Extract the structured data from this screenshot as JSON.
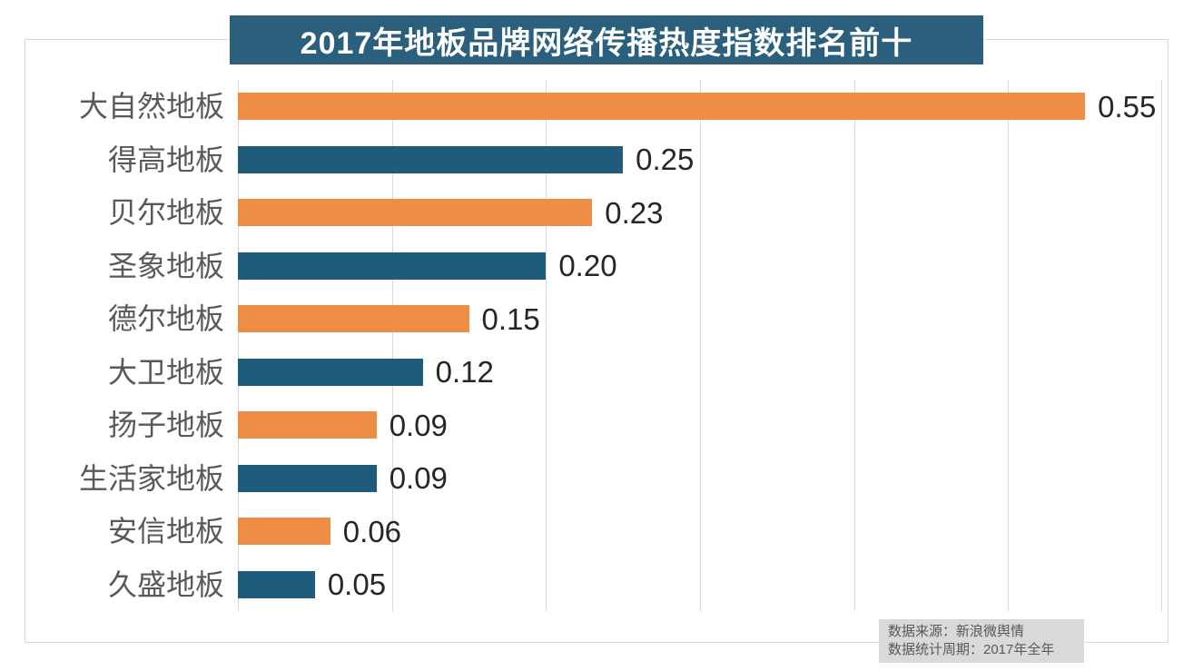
{
  "title": "2017年地板品牌网络传播热度指数排名前十",
  "source_note": {
    "line1": "数据来源：新浪微舆情",
    "line2": "数据统计周期：2017年全年"
  },
  "colors": {
    "orange_bar": "#EE8D45",
    "blue_bar": "#1F5B7B",
    "title_bg": "#2A5F7D",
    "title_text": "#FFFFFF",
    "grid": "#D9D9D9",
    "frame_border": "#D9D9D9",
    "category_label": "#595959",
    "value_label": "#262626",
    "note_bg": "#D9D9D9",
    "note_text": "#595959"
  },
  "chart_data": {
    "type": "bar",
    "orientation": "horizontal",
    "title": "2017年地板品牌网络传播热度指数排名前十",
    "categories": [
      "大自然地板",
      "得高地板",
      "贝尔地板",
      "圣象地板",
      "德尔地板",
      "大卫地板",
      "扬子地板",
      "生活家地板",
      "安信地板",
      "久盛地板"
    ],
    "values": [
      0.55,
      0.25,
      0.23,
      0.2,
      0.15,
      0.12,
      0.09,
      0.09,
      0.06,
      0.05
    ],
    "value_labels": [
      "0.55",
      "0.25",
      "0.23",
      "0.20",
      "0.15",
      "0.12",
      "0.09",
      "0.09",
      "0.06",
      "0.05"
    ],
    "xlim": [
      0,
      0.6
    ],
    "gridline_step": 0.1,
    "grid": "vertical-only",
    "x_tick_labels": "none",
    "legend": "none",
    "bar_color_pattern": [
      "#EE8D45",
      "#1F5B7B"
    ],
    "data_labels": "outside-end"
  }
}
